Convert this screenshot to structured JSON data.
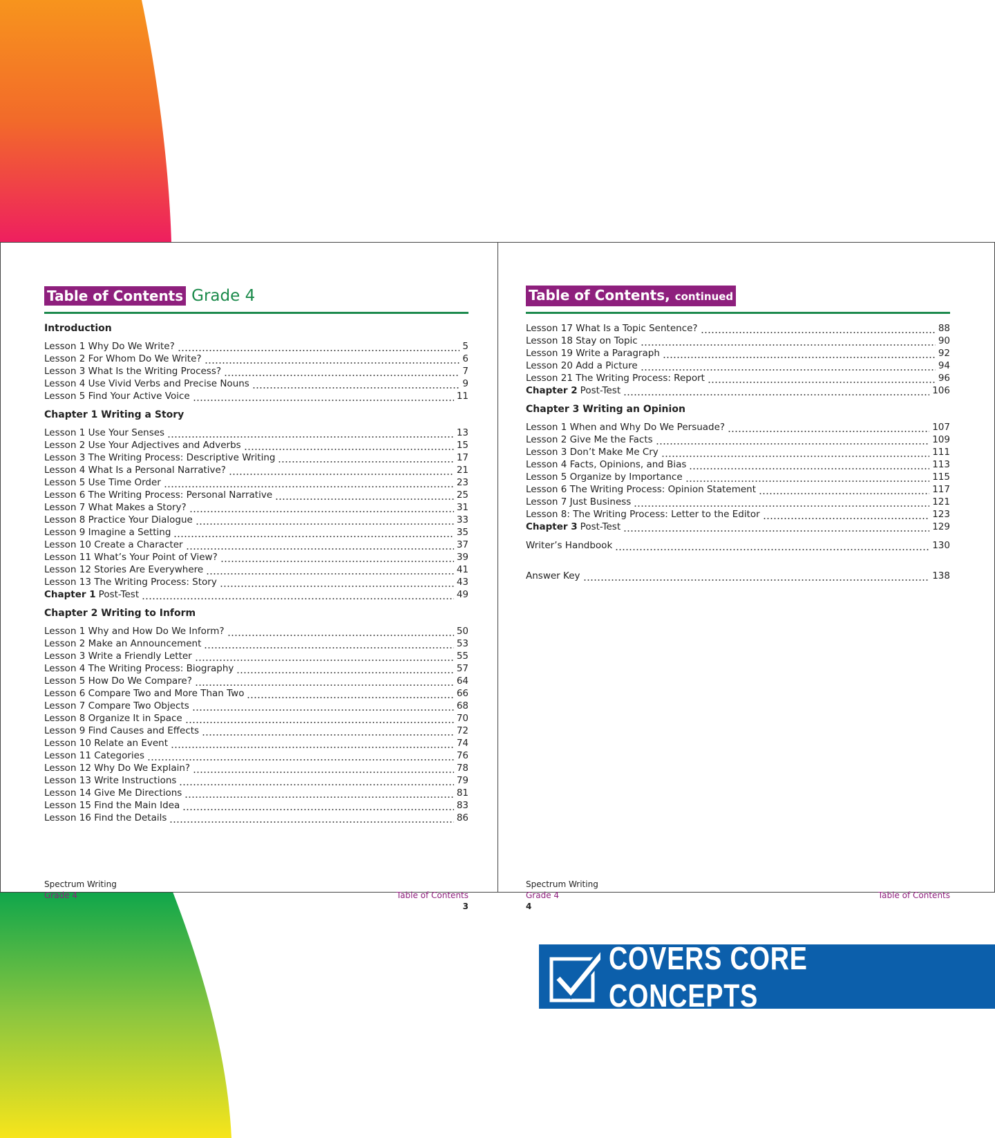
{
  "left_page": {
    "title": "Table of Contents",
    "subtitle": "Grade 4",
    "sections": [
      {
        "heading": "Introduction",
        "entries": [
          {
            "label": "Lesson 1 Why Do We Write?",
            "page": 5
          },
          {
            "label": "Lesson 2 For Whom Do We Write?",
            "page": 6
          },
          {
            "label": "Lesson 3 What Is the Writing Process?",
            "page": 7
          },
          {
            "label": "Lesson 4 Use Vivid Verbs and Precise Nouns",
            "page": 9
          },
          {
            "label": "Lesson 5 Find Your Active Voice",
            "page": 11
          }
        ]
      },
      {
        "heading": "Chapter 1 Writing a Story",
        "entries": [
          {
            "label": "Lesson 1 Use Your Senses",
            "page": 13
          },
          {
            "label": "Lesson 2 Use Your Adjectives and Adverbs",
            "page": 15
          },
          {
            "label": "Lesson 3 The Writing Process: Descriptive Writing",
            "page": 17
          },
          {
            "label": "Lesson 4 What Is a Personal Narrative?",
            "page": 21
          },
          {
            "label": "Lesson 5 Use Time Order",
            "page": 23
          },
          {
            "label": "Lesson 6 The Writing Process: Personal Narrative",
            "page": 25
          },
          {
            "label": "Lesson 7 What Makes a Story?",
            "page": 31
          },
          {
            "label": "Lesson 8 Practice Your Dialogue",
            "page": 33
          },
          {
            "label": "Lesson 9 Imagine a Setting",
            "page": 35
          },
          {
            "label": "Lesson 10 Create a Character",
            "page": 37
          },
          {
            "label": "Lesson 11 What’s Your Point of View?",
            "page": 39
          },
          {
            "label": "Lesson 12 Stories Are Everywhere",
            "page": 41
          },
          {
            "label": "Lesson 13 The Writing Process: Story",
            "page": 43
          },
          {
            "bold": "Chapter 1",
            "label": "Post-Test",
            "page": 49
          }
        ]
      },
      {
        "heading": "Chapter 2 Writing to Inform",
        "entries": [
          {
            "label": "Lesson 1 Why and How Do We Inform?",
            "page": 50
          },
          {
            "label": "Lesson 2 Make an Announcement",
            "page": 53
          },
          {
            "label": "Lesson 3 Write a Friendly Letter",
            "page": 55
          },
          {
            "label": "Lesson 4 The Writing Process: Biography",
            "page": 57
          },
          {
            "label": "Lesson 5 How Do We Compare?",
            "page": 64
          },
          {
            "label": "Lesson 6 Compare Two and More Than Two",
            "page": 66
          },
          {
            "label": "Lesson 7 Compare Two Objects",
            "page": 68
          },
          {
            "label": "Lesson 8 Organize It in Space",
            "page": 70
          },
          {
            "label": "Lesson 9 Find Causes and Effects",
            "page": 72
          },
          {
            "label": "Lesson 10 Relate an Event",
            "page": 74
          },
          {
            "label": "Lesson 11 Categories",
            "page": 76
          },
          {
            "label": "Lesson 12 Why Do We Explain?",
            "page": 78
          },
          {
            "label": "Lesson 13 Write Instructions",
            "page": 79
          },
          {
            "label": "Lesson 14 Give Me Directions",
            "page": 81
          },
          {
            "label": "Lesson 15 Find the Main Idea",
            "page": 83
          },
          {
            "label": "Lesson 16 Find the Details",
            "page": 86
          }
        ]
      }
    ],
    "footer": {
      "book": "Spectrum Writing",
      "grade": "Grade 4",
      "section": "Table of Contents",
      "page_number": 3
    }
  },
  "right_page": {
    "title": "Table of Contents,",
    "subtitle": "continued",
    "sections": [
      {
        "entries": [
          {
            "label": "Lesson 17 What Is a Topic Sentence?",
            "page": 88
          },
          {
            "label": "Lesson 18 Stay on Topic",
            "page": 90
          },
          {
            "label": "Lesson 19 Write a Paragraph",
            "page": 92
          },
          {
            "label": "Lesson 20 Add a Picture",
            "page": 94
          },
          {
            "label": "Lesson 21 The Writing Process: Report",
            "page": 96
          },
          {
            "bold": "Chapter 2",
            "label": "Post-Test",
            "page": 106
          }
        ]
      },
      {
        "heading": "Chapter 3 Writing an Opinion",
        "entries": [
          {
            "label": "Lesson 1 When and Why Do We Persuade?",
            "page": 107
          },
          {
            "label": "Lesson 2 Give Me the Facts",
            "page": 109
          },
          {
            "label": "Lesson 3 Don’t Make Me Cry",
            "page": 111
          },
          {
            "label": "Lesson 4 Facts, Opinions, and Bias",
            "page": 113
          },
          {
            "label": "Lesson 5 Organize by Importance",
            "page": 115
          },
          {
            "label": "Lesson 6 The Writing Process: Opinion Statement",
            "page": 117
          },
          {
            "label": "Lesson 7 Just Business",
            "page": 121
          },
          {
            "label": "Lesson 8: The Writing Process: Letter to the Editor",
            "page": 123
          },
          {
            "bold": "Chapter 3",
            "label": "Post-Test",
            "page": 129
          }
        ]
      },
      {
        "entries": [
          {
            "label": "Writer’s Handbook",
            "page": 130
          }
        ]
      },
      {
        "entries": [
          {
            "label": "Answer Key",
            "page": 138
          }
        ]
      }
    ],
    "footer": {
      "book": "Spectrum Writing",
      "grade": "Grade 4",
      "section": "Table of Contents",
      "page_number": 4
    }
  },
  "banner": {
    "text": "COVERS CORE CONCEPTS"
  }
}
